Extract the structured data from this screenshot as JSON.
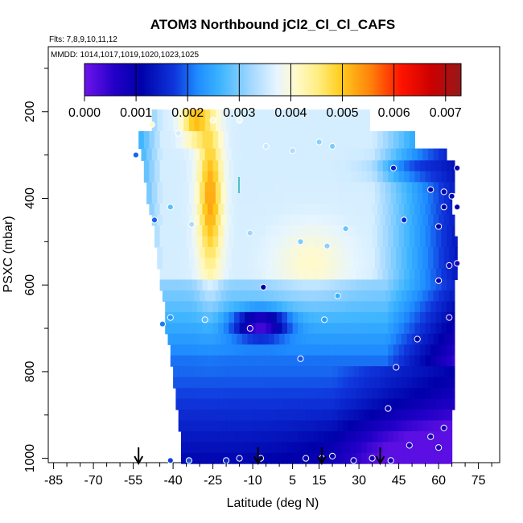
{
  "chart_data": {
    "type": "heatmap",
    "title": "ATOM3 Northbound jCl2_Cl_Cl_CAFS",
    "subtitle_flights": "Flts: 7,8,9,10,11,12",
    "subtitle_dates": "MMDD: 1014,1017,1019,1020,1023,1025",
    "xlabel": "Latitude (deg N)",
    "ylabel": "PSXC (mbar)",
    "xlim": [
      -87,
      83
    ],
    "ylim": [
      1010,
      50
    ],
    "x_ticks": [
      -85,
      -70,
      -55,
      -40,
      -25,
      -10,
      5,
      15,
      30,
      45,
      60,
      75
    ],
    "x_tick_labels": [
      "-85",
      "-70",
      "-55",
      "-40",
      "-25",
      "-10",
      "5",
      "15",
      "30",
      "45",
      "60",
      "75"
    ],
    "y_ticks": [
      200,
      400,
      600,
      800,
      1000
    ],
    "y_tick_labels": [
      "200",
      "400",
      "600",
      "800",
      "1000"
    ],
    "colorbar": {
      "min": 0.0,
      "max": 0.0073,
      "ticks": [
        0.0,
        0.001,
        0.002,
        0.003,
        0.004,
        0.005,
        0.006,
        0.007
      ],
      "tick_labels": [
        "0.000",
        "0.001",
        "0.002",
        "0.003",
        "0.004",
        "0.005",
        "0.006",
        "0.007"
      ]
    },
    "flight_arrows_lat": [
      -53,
      -8,
      16,
      38
    ],
    "pressure_levels": [
      220,
      270,
      300,
      325,
      350,
      375,
      400,
      425,
      450,
      475,
      500,
      525,
      550,
      575,
      600,
      625,
      650,
      675,
      700,
      725,
      750,
      775,
      800,
      825,
      850,
      875,
      900,
      925,
      950,
      975,
      1000
    ],
    "level_lat_range": [
      [
        -48,
        34
      ],
      [
        -53,
        51
      ],
      [
        -52,
        63
      ],
      [
        -51,
        66
      ],
      [
        -51,
        66
      ],
      [
        -50,
        66
      ],
      [
        -50,
        65
      ],
      [
        -49,
        65
      ],
      [
        -48,
        66
      ],
      [
        -47,
        66
      ],
      [
        -47,
        67
      ],
      [
        -46,
        67
      ],
      [
        -46,
        67
      ],
      [
        -45,
        67
      ],
      [
        -45,
        66
      ],
      [
        -44,
        66
      ],
      [
        -43,
        66
      ],
      [
        -43,
        66
      ],
      [
        -43,
        66
      ],
      [
        -42,
        66
      ],
      [
        -41,
        66
      ],
      [
        -41,
        66
      ],
      [
        -40,
        66
      ],
      [
        -40,
        66
      ],
      [
        -39,
        66
      ],
      [
        -39,
        66
      ],
      [
        -38,
        65
      ],
      [
        -38,
        65
      ],
      [
        -37,
        65
      ],
      [
        -37,
        65
      ],
      [
        -37,
        65
      ]
    ],
    "sample_points": [
      {
        "lat": -48,
        "p": 230,
        "v": 0.0041
      },
      {
        "lat": -38,
        "p": 250,
        "v": 0.0036
      },
      {
        "lat": -25,
        "p": 220,
        "v": 0.004
      },
      {
        "lat": -15,
        "p": 220,
        "v": 0.0038
      },
      {
        "lat": -54,
        "p": 300,
        "v": 0.002
      },
      {
        "lat": -5,
        "p": 280,
        "v": 0.0035
      },
      {
        "lat": 5,
        "p": 290,
        "v": 0.0033
      },
      {
        "lat": 15,
        "p": 270,
        "v": 0.0031
      },
      {
        "lat": 20,
        "p": 280,
        "v": 0.003
      },
      {
        "lat": 43,
        "p": 330,
        "v": 0.0015
      },
      {
        "lat": 67,
        "p": 330,
        "v": 0.001
      },
      {
        "lat": 57,
        "p": 380,
        "v": 0.0011
      },
      {
        "lat": 62,
        "p": 385,
        "v": 0.0012
      },
      {
        "lat": 65,
        "p": 395,
        "v": 0.0012
      },
      {
        "lat": -41,
        "p": 420,
        "v": 0.0028
      },
      {
        "lat": -47,
        "p": 450,
        "v": 0.002
      },
      {
        "lat": -33,
        "p": 460,
        "v": 0.0033
      },
      {
        "lat": -11,
        "p": 480,
        "v": 0.0032
      },
      {
        "lat": 8,
        "p": 500,
        "v": 0.003
      },
      {
        "lat": 18,
        "p": 510,
        "v": 0.0031
      },
      {
        "lat": 25,
        "p": 470,
        "v": 0.0029
      },
      {
        "lat": 47,
        "p": 450,
        "v": 0.0016
      },
      {
        "lat": 60,
        "p": 465,
        "v": 0.0011
      },
      {
        "lat": 62,
        "p": 420,
        "v": 0.0011
      },
      {
        "lat": 67,
        "p": 420,
        "v": 0.001
      },
      {
        "lat": 64,
        "p": 555,
        "v": 0.0008
      },
      {
        "lat": 67,
        "p": 550,
        "v": 0.0007
      },
      {
        "lat": 60,
        "p": 590,
        "v": 0.0009
      },
      {
        "lat": -6,
        "p": 605,
        "v": 0.0011
      },
      {
        "lat": 22,
        "p": 625,
        "v": 0.0026
      },
      {
        "lat": -41,
        "p": 675,
        "v": 0.0023
      },
      {
        "lat": -28,
        "p": 680,
        "v": 0.0028
      },
      {
        "lat": -11,
        "p": 700,
        "v": 0.0006
      },
      {
        "lat": 17,
        "p": 680,
        "v": 0.0024
      },
      {
        "lat": 64,
        "p": 675,
        "v": 0.0008
      },
      {
        "lat": -44,
        "p": 690,
        "v": 0.0021
      },
      {
        "lat": 52,
        "p": 725,
        "v": 0.0011
      },
      {
        "lat": 8,
        "p": 770,
        "v": 0.0019
      },
      {
        "lat": 44,
        "p": 790,
        "v": 0.0014
      },
      {
        "lat": 41,
        "p": 885,
        "v": 0.001
      },
      {
        "lat": 62,
        "p": 930,
        "v": 0.0008
      },
      {
        "lat": 57,
        "p": 950,
        "v": 0.0008
      },
      {
        "lat": 49,
        "p": 970,
        "v": 0.0007
      },
      {
        "lat": -34,
        "p": 1005,
        "v": 0.0019
      },
      {
        "lat": -20,
        "p": 1005,
        "v": 0.0015
      },
      {
        "lat": -15,
        "p": 1000,
        "v": 0.0013
      },
      {
        "lat": -7,
        "p": 1000,
        "v": 0.0009
      },
      {
        "lat": 10,
        "p": 1000,
        "v": 0.001
      },
      {
        "lat": 16,
        "p": 1000,
        "v": 0.001
      },
      {
        "lat": 20,
        "p": 995,
        "v": 0.0011
      },
      {
        "lat": 28,
        "p": 1005,
        "v": 0.0009
      },
      {
        "lat": 35,
        "p": 1000,
        "v": 0.0009
      },
      {
        "lat": 42,
        "p": 1005,
        "v": 0.0008
      },
      {
        "lat": -41,
        "p": 1005,
        "v": 0.0018
      },
      {
        "lat": 60,
        "p": 975,
        "v": 0.0007
      }
    ]
  }
}
